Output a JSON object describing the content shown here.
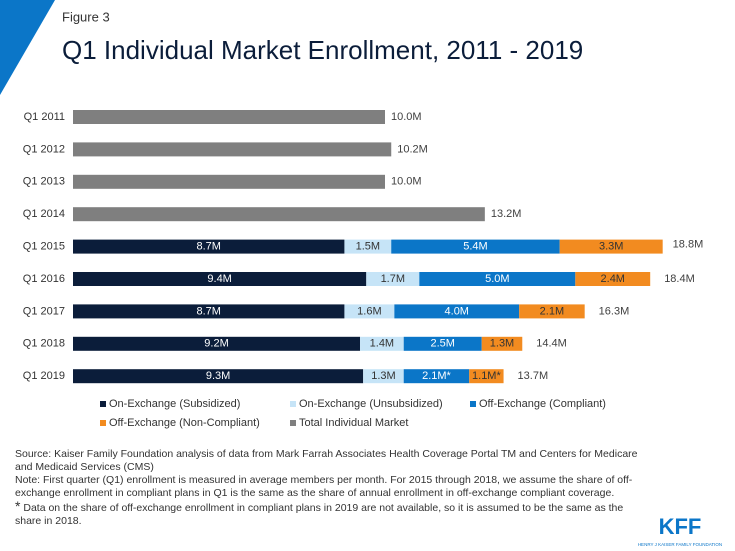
{
  "chart_data": {
    "type": "stacked-bar-horizontal",
    "figure_label": "Figure 3",
    "title": "Q1 Individual Market Enrollment, 2011 - 2019",
    "categories": [
      "Q1 2011",
      "Q1 2012",
      "Q1 2013",
      "Q1 2014",
      "Q1 2015",
      "Q1 2016",
      "Q1 2017",
      "Q1 2018",
      "Q1 2019"
    ],
    "series": [
      {
        "name": "On-Exchange (Subsidized)",
        "color": "#0b1d3a",
        "label_color": "#ffffff",
        "values": [
          null,
          null,
          null,
          null,
          8.7,
          9.4,
          8.7,
          9.2,
          9.3
        ],
        "value_labels": [
          null,
          null,
          null,
          null,
          "8.7M",
          "9.4M",
          "8.7M",
          "9.2M",
          "9.3M"
        ]
      },
      {
        "name": "On-Exchange (Unsubsidized)",
        "color": "#c6e4f7",
        "label_color": "#333333",
        "values": [
          null,
          null,
          null,
          null,
          1.5,
          1.7,
          1.6,
          1.4,
          1.3
        ],
        "value_labels": [
          null,
          null,
          null,
          null,
          "1.5M",
          "1.7M",
          "1.6M",
          "1.4M",
          "1.3M"
        ]
      },
      {
        "name": "Off-Exchange (Compliant)",
        "color": "#0b76c8",
        "label_color": "#ffffff",
        "values": [
          null,
          null,
          null,
          null,
          5.4,
          5.0,
          4.0,
          2.5,
          2.1
        ],
        "value_labels": [
          null,
          null,
          null,
          null,
          "5.4M",
          "5.0M",
          "4.0M",
          "2.5M",
          "2.1M*"
        ]
      },
      {
        "name": "Off-Exchange (Non-Compliant)",
        "color": "#f28b20",
        "label_color": "#333333",
        "values": [
          null,
          null,
          null,
          null,
          3.3,
          2.4,
          2.1,
          1.3,
          1.1
        ],
        "value_labels": [
          null,
          null,
          null,
          null,
          "3.3M",
          "2.4M",
          "2.1M",
          "1.3M",
          "1.1M*"
        ]
      },
      {
        "name": "Total Individual Market",
        "color": "#7f7f7f",
        "label_color": "#404040",
        "values": [
          10.0,
          10.2,
          10.0,
          13.2,
          null,
          null,
          null,
          null,
          null
        ],
        "value_labels": [
          "10.0M",
          "10.2M",
          "10.0M",
          "13.2M",
          null,
          null,
          null,
          null,
          null
        ]
      }
    ],
    "totals": {
      "values": [
        null,
        null,
        null,
        null,
        18.8,
        18.4,
        16.3,
        14.4,
        13.7
      ],
      "value_labels": [
        null,
        null,
        null,
        null,
        "18.8M",
        "18.4M",
        "16.3M",
        "14.4M",
        "13.7M"
      ]
    },
    "notes": [
      "Source: Kaiser Family Foundation analysis of data from Mark Farrah Associates Health Coverage Portal TM and Centers for Medicare and Medicaid Services (CMS)",
      "Note: First quarter (Q1) enrollment is measured in average members per month. For 2015 through 2018, we assume the share of off-exchange enrollment in compliant plans in Q1 is the same as the share of annual enrollment in off-exchange compliant coverage.",
      "Data on the share of off-exchange enrollment in compliant plans in 2019 are not available, so it is assumed to be the same as the share in 2018."
    ],
    "footnote_mark": "*",
    "logo": {
      "text": "KFF",
      "subtext": "HENRY J KAISER FAMILY FOUNDATION"
    }
  }
}
